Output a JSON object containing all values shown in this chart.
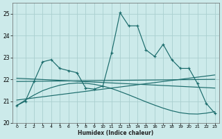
{
  "xlabel": "Humidex (Indice chaleur)",
  "background_color": "#cceaea",
  "grid_color": "#aacfcf",
  "line_color": "#1a6b6b",
  "xlim": [
    -0.5,
    23.5
  ],
  "ylim": [
    20.0,
    25.5
  ],
  "yticks": [
    20,
    21,
    22,
    23,
    24,
    25
  ],
  "xticks": [
    0,
    1,
    2,
    3,
    4,
    5,
    6,
    7,
    8,
    9,
    10,
    11,
    12,
    13,
    14,
    15,
    16,
    17,
    18,
    19,
    20,
    21,
    22,
    23
  ],
  "main_x": [
    0,
    1,
    2,
    3,
    4,
    5,
    6,
    7,
    8,
    9,
    10,
    11,
    12,
    13,
    14,
    15,
    16,
    17,
    18,
    19,
    20,
    21,
    22,
    23
  ],
  "main_y": [
    20.8,
    21.0,
    21.9,
    22.8,
    22.9,
    22.5,
    22.4,
    22.3,
    21.6,
    21.55,
    21.7,
    23.2,
    25.05,
    24.45,
    24.45,
    23.35,
    23.05,
    23.6,
    22.9,
    22.5,
    22.5,
    21.8,
    20.9,
    20.45
  ],
  "line1_x": [
    0,
    23
  ],
  "line1_y": [
    21.05,
    22.2
  ],
  "line2_x": [
    0,
    23
  ],
  "line2_y": [
    21.9,
    22.0
  ],
  "line3_x": [
    0,
    23
  ],
  "line3_y": [
    22.05,
    21.6
  ],
  "bell_x": [
    0,
    1,
    2,
    3,
    4,
    5,
    6,
    7,
    8,
    9,
    10,
    11,
    12,
    13,
    14,
    15,
    16,
    17,
    18,
    19,
    20,
    21,
    22,
    23
  ],
  "bell_y": [
    20.8,
    21.05,
    21.28,
    21.48,
    21.62,
    21.73,
    21.8,
    21.83,
    21.82,
    21.77,
    21.69,
    21.58,
    21.44,
    21.29,
    21.13,
    20.97,
    20.82,
    20.68,
    20.56,
    20.47,
    20.42,
    20.41,
    20.45,
    20.52
  ]
}
